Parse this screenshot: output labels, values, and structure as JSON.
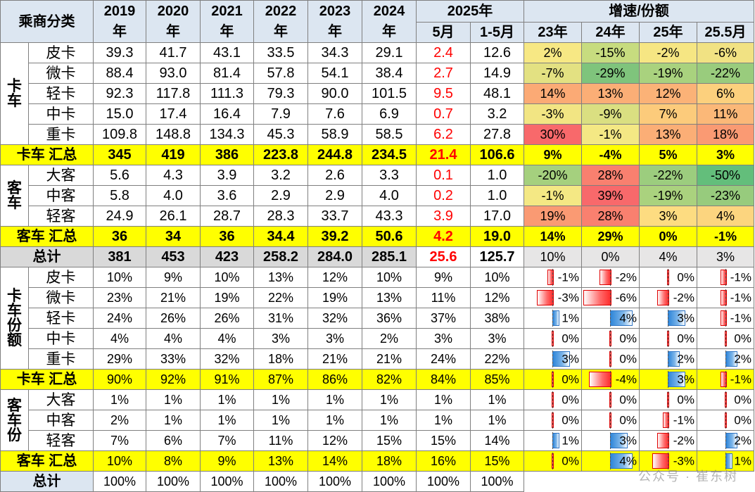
{
  "header": {
    "category": "乘商分类",
    "years": [
      "2019\n年",
      "2020\n年",
      "2021\n年",
      "2022\n年",
      "2023\n年",
      "2024\n年"
    ],
    "y2025": "2025年",
    "y2025_sub": [
      "5月",
      "1-5月"
    ],
    "growth": "增速/份额",
    "growth_sub": [
      "23年",
      "24年",
      "25年",
      "25.5月"
    ]
  },
  "groups": {
    "truck": "卡车",
    "bus": "客车",
    "truck_share": "卡车份额",
    "bus_share": "客车份"
  },
  "truck_rows": [
    {
      "label": "皮卡",
      "vals": [
        "39.3",
        "41.7",
        "43.1",
        "33.5",
        "34.3",
        "29.1"
      ],
      "may": "2.4",
      "ytd": "12.6",
      "g": [
        "2%",
        "-15%",
        "-2%",
        "-6%"
      ],
      "gc": [
        "#f7e884",
        "#c7dc7f",
        "#f6e683",
        "#f1e283"
      ]
    },
    {
      "label": "微卡",
      "vals": [
        "88.4",
        "93.0",
        "81.4",
        "57.8",
        "54.1",
        "38.4"
      ],
      "may": "2.7",
      "ytd": "14.9",
      "g": [
        "-7%",
        "-29%",
        "-19%",
        "-22%"
      ],
      "gc": [
        "#e3e182",
        "#7fc47c",
        "#a9d27e",
        "#99cc7d"
      ]
    },
    {
      "label": "轻卡",
      "vals": [
        "92.3",
        "117.8",
        "111.3",
        "79.3",
        "90.0",
        "101.5"
      ],
      "may": "9.5",
      "ytd": "48.1",
      "g": [
        "14%",
        "13%",
        "12%",
        "6%"
      ],
      "gc": [
        "#fbaa75",
        "#fbae76",
        "#fbb277",
        "#fcd07d"
      ]
    },
    {
      "label": "中卡",
      "vals": [
        "15.0",
        "17.4",
        "16.4",
        "7.9",
        "7.6",
        "6.9"
      ],
      "may": "0.7",
      "ytd": "3.2",
      "g": [
        "-3%",
        "-9%",
        "7%",
        "11%"
      ],
      "gc": [
        "#f2e583",
        "#dadf81",
        "#fccb7b",
        "#fbb878"
      ]
    },
    {
      "label": "重卡",
      "vals": [
        "109.8",
        "148.8",
        "134.3",
        "45.3",
        "58.9",
        "58.5"
      ],
      "may": "6.2",
      "ytd": "27.8",
      "g": [
        "30%",
        "-1%",
        "13%",
        "18%"
      ],
      "gc": [
        "#f8696b",
        "#f4e884",
        "#fbae76",
        "#fa9a73"
      ]
    }
  ],
  "truck_sum": {
    "label": "卡车 汇总",
    "vals": [
      "345",
      "419",
      "386",
      "223.8",
      "244.8",
      "234.5"
    ],
    "may": "21.4",
    "ytd": "106.6",
    "g": [
      "9%",
      "-4%",
      "5%",
      "3%"
    ]
  },
  "bus_rows": [
    {
      "label": "大客",
      "vals": [
        "5.6",
        "4.3",
        "3.9",
        "3.2",
        "2.6",
        "3.3"
      ],
      "may": "0.1",
      "ytd": "1.0",
      "g": [
        "-20%",
        "28%",
        "-22%",
        "-50%"
      ],
      "gc": [
        "#a5d07e",
        "#f9806f",
        "#9ccd7e",
        "#63be7b"
      ]
    },
    {
      "label": "中客",
      "vals": [
        "5.8",
        "4.0",
        "3.6",
        "2.9",
        "2.9",
        "4.0"
      ],
      "may": "0.2",
      "ytd": "1.0",
      "g": [
        "-1%",
        "39%",
        "-19%",
        "-23%"
      ],
      "gc": [
        "#f4e884",
        "#f8696b",
        "#aad27e",
        "#97cb7d"
      ]
    },
    {
      "label": "轻客",
      "vals": [
        "24.9",
        "26.1",
        "28.7",
        "28.3",
        "33.7",
        "43.3"
      ],
      "may": "3.9",
      "ytd": "17.0",
      "g": [
        "19%",
        "28%",
        "3%",
        "4%"
      ],
      "gc": [
        "#fa9a73",
        "#f9806f",
        "#fddc81",
        "#fcd57f"
      ]
    }
  ],
  "bus_sum": {
    "label": "客车 汇总",
    "vals": [
      "36",
      "34",
      "36",
      "34.4",
      "39.2",
      "50.6"
    ],
    "may": "4.2",
    "ytd": "19.0",
    "g": [
      "14%",
      "29%",
      "0%",
      "-1%"
    ]
  },
  "total": {
    "label": "总计",
    "vals": [
      "381",
      "453",
      "423",
      "258.2",
      "284.0",
      "285.1"
    ],
    "may": "25.6",
    "ytd": "125.7",
    "g": [
      "10%",
      "0%",
      "4%",
      "3%"
    ]
  },
  "truck_share_rows": [
    {
      "label": "皮卡",
      "vals": [
        "10%",
        "9%",
        "10%",
        "13%",
        "12%",
        "10%"
      ],
      "may": "9%",
      "ytd": "10%",
      "b": [
        -1,
        -2,
        0,
        -1
      ],
      "bl": [
        "-1%",
        "-2%",
        "0%",
        "-1%"
      ]
    },
    {
      "label": "微卡",
      "vals": [
        "23%",
        "21%",
        "19%",
        "22%",
        "19%",
        "13%"
      ],
      "may": "11%",
      "ytd": "12%",
      "b": [
        -3,
        -6,
        -2,
        -1
      ],
      "bl": [
        "-3%",
        "-6%",
        "-2%",
        "-1%"
      ]
    },
    {
      "label": "轻卡",
      "vals": [
        "24%",
        "26%",
        "26%",
        "31%",
        "32%",
        "36%"
      ],
      "may": "37%",
      "ytd": "38%",
      "b": [
        1,
        4,
        3,
        -1
      ],
      "bl": [
        "1%",
        "4%",
        "3%",
        "-1%"
      ]
    },
    {
      "label": "中卡",
      "vals": [
        "4%",
        "4%",
        "4%",
        "3%",
        "3%",
        "2%"
      ],
      "may": "3%",
      "ytd": "3%",
      "b": [
        0,
        0,
        0,
        0
      ],
      "bl": [
        "0%",
        "0%",
        "0%",
        "0%"
      ]
    },
    {
      "label": "重卡",
      "vals": [
        "29%",
        "33%",
        "32%",
        "18%",
        "21%",
        "21%"
      ],
      "may": "24%",
      "ytd": "22%",
      "b": [
        3,
        0,
        2,
        2
      ],
      "bl": [
        "3%",
        "0%",
        "2%",
        "2%"
      ]
    }
  ],
  "truck_share_sum": {
    "label": "卡车 汇总",
    "vals": [
      "90%",
      "92%",
      "91%",
      "87%",
      "86%",
      "82%"
    ],
    "may": "84%",
    "ytd": "85%",
    "b": [
      0,
      -4,
      3,
      -1
    ],
    "bl": [
      "0%",
      "-4%",
      "3%",
      "-1%"
    ]
  },
  "bus_share_rows": [
    {
      "label": "大客",
      "vals": [
        "1%",
        "1%",
        "1%",
        "1%",
        "1%",
        "1%"
      ],
      "may": "1%",
      "ytd": "1%",
      "b": [
        0,
        0,
        0,
        0
      ],
      "bl": [
        "0%",
        "0%",
        "0%",
        "0%"
      ]
    },
    {
      "label": "中客",
      "vals": [
        "2%",
        "1%",
        "1%",
        "1%",
        "1%",
        "1%"
      ],
      "may": "1%",
      "ytd": "1%",
      "b": [
        0,
        0,
        -1,
        0
      ],
      "bl": [
        "0%",
        "0%",
        "-1%",
        "0%"
      ]
    },
    {
      "label": "轻客",
      "vals": [
        "7%",
        "6%",
        "7%",
        "11%",
        "12%",
        "15%"
      ],
      "may": "15%",
      "ytd": "14%",
      "b": [
        1,
        3,
        -2,
        2
      ],
      "bl": [
        "1%",
        "3%",
        "-2%",
        "2%"
      ]
    }
  ],
  "bus_share_sum": {
    "label": "客车 汇总",
    "vals": [
      "10%",
      "8%",
      "9%",
      "13%",
      "14%",
      "18%"
    ],
    "may": "16%",
    "ytd": "15%",
    "b": [
      0,
      4,
      -3,
      1
    ],
    "bl": [
      "0%",
      "4%",
      "-3%",
      "1%"
    ]
  },
  "share_total": {
    "label": "总计",
    "vals": [
      "100%",
      "100%",
      "100%",
      "100%",
      "100%",
      "100%"
    ],
    "may": "100%",
    "ytd": "100%"
  },
  "watermark": "公众号 · 崔东树"
}
